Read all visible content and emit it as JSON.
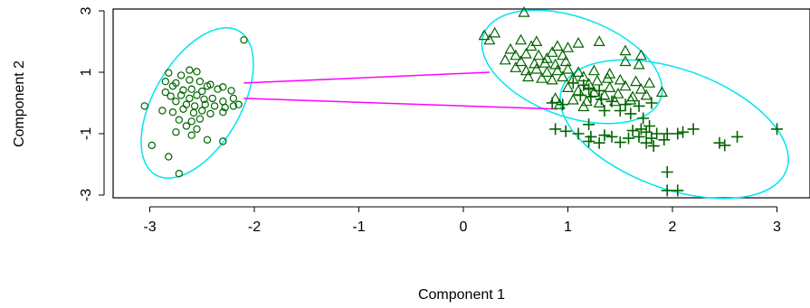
{
  "chart_data": {
    "type": "scatter",
    "xlabel": "Component 1",
    "ylabel": "Component 2",
    "xlim": [
      -3.35,
      3.05
    ],
    "ylim": [
      -3.2,
      3.05
    ],
    "xticks": [
      -3,
      -2,
      -1,
      0,
      1,
      2,
      3
    ],
    "yticks": [
      -3,
      -1,
      1,
      3
    ],
    "ytick_labels_rotated": true,
    "grid": false,
    "legend": "none",
    "colors": {
      "points": "#006400",
      "ellipse": "#00e5ee",
      "connector": "#ff00ff",
      "axes": "#000000"
    },
    "series": [
      {
        "marker": "circle",
        "points": [
          [
            -2.1,
            2.05
          ],
          [
            -2.82,
            0.98
          ],
          [
            -2.62,
            1.07
          ],
          [
            -2.55,
            1.02
          ],
          [
            -2.7,
            0.9
          ],
          [
            -2.85,
            0.7
          ],
          [
            -2.75,
            0.65
          ],
          [
            -2.62,
            0.75
          ],
          [
            -2.52,
            0.7
          ],
          [
            -2.42,
            0.6
          ],
          [
            -2.3,
            0.52
          ],
          [
            -2.78,
            0.55
          ],
          [
            -2.68,
            0.42
          ],
          [
            -2.6,
            0.45
          ],
          [
            -2.5,
            0.38
          ],
          [
            -2.45,
            0.55
          ],
          [
            -2.35,
            0.45
          ],
          [
            -2.22,
            0.4
          ],
          [
            -2.85,
            0.35
          ],
          [
            -2.8,
            0.22
          ],
          [
            -2.7,
            0.25
          ],
          [
            -2.62,
            0.15
          ],
          [
            -2.55,
            0.25
          ],
          [
            -2.48,
            0.12
          ],
          [
            -2.4,
            0.15
          ],
          [
            -2.3,
            0.05
          ],
          [
            -2.2,
            0.15
          ],
          [
            -2.15,
            -0.05
          ],
          [
            -2.75,
            0.05
          ],
          [
            -2.65,
            -0.05
          ],
          [
            -2.57,
            -0.1
          ],
          [
            -2.47,
            -0.05
          ],
          [
            -2.38,
            -0.1
          ],
          [
            -2.28,
            -0.15
          ],
          [
            -2.2,
            -0.1
          ],
          [
            -2.88,
            -0.25
          ],
          [
            -2.78,
            -0.3
          ],
          [
            -2.68,
            -0.2
          ],
          [
            -2.58,
            -0.32
          ],
          [
            -2.5,
            -0.25
          ],
          [
            -2.42,
            -0.35
          ],
          [
            -2.3,
            -0.3
          ],
          [
            -3.05,
            -0.1
          ],
          [
            -2.72,
            -0.55
          ],
          [
            -2.6,
            -0.6
          ],
          [
            -2.52,
            -0.52
          ],
          [
            -2.65,
            -0.75
          ],
          [
            -2.55,
            -0.85
          ],
          [
            -2.75,
            -0.95
          ],
          [
            -2.6,
            -1.05
          ],
          [
            -2.45,
            -1.2
          ],
          [
            -2.3,
            -1.25
          ],
          [
            -2.98,
            -1.38
          ],
          [
            -2.82,
            -1.75
          ],
          [
            -2.72,
            -2.3
          ]
        ]
      },
      {
        "marker": "triangle",
        "points": [
          [
            0.58,
            2.95
          ],
          [
            0.3,
            2.28
          ],
          [
            0.2,
            2.2
          ],
          [
            0.25,
            2.05
          ],
          [
            0.55,
            2.05
          ],
          [
            0.7,
            2.0
          ],
          [
            0.65,
            1.85
          ],
          [
            0.9,
            1.85
          ],
          [
            1.0,
            1.8
          ],
          [
            1.1,
            1.95
          ],
          [
            1.3,
            2.0
          ],
          [
            1.55,
            1.7
          ],
          [
            1.7,
            1.55
          ],
          [
            0.45,
            1.75
          ],
          [
            0.5,
            1.55
          ],
          [
            0.6,
            1.6
          ],
          [
            0.72,
            1.55
          ],
          [
            0.8,
            1.45
          ],
          [
            0.85,
            1.65
          ],
          [
            0.95,
            1.55
          ],
          [
            0.4,
            1.4
          ],
          [
            0.55,
            1.35
          ],
          [
            0.68,
            1.28
          ],
          [
            0.78,
            1.3
          ],
          [
            0.88,
            1.25
          ],
          [
            0.98,
            1.35
          ],
          [
            0.5,
            1.15
          ],
          [
            0.6,
            1.05
          ],
          [
            0.7,
            1.1
          ],
          [
            0.8,
            1.0
          ],
          [
            0.9,
            1.05
          ],
          [
            1.0,
            1.1
          ],
          [
            1.1,
            1.0
          ],
          [
            1.25,
            1.05
          ],
          [
            1.4,
            0.95
          ],
          [
            1.55,
            1.35
          ],
          [
            1.68,
            1.25
          ],
          [
            0.62,
            0.85
          ],
          [
            0.75,
            0.8
          ],
          [
            0.85,
            0.75
          ],
          [
            0.95,
            0.85
          ],
          [
            1.05,
            0.78
          ],
          [
            1.15,
            0.85
          ],
          [
            1.28,
            0.72
          ],
          [
            1.38,
            0.8
          ],
          [
            1.5,
            0.75
          ],
          [
            1.65,
            0.7
          ],
          [
            1.78,
            0.65
          ],
          [
            1.2,
            0.62
          ],
          [
            1.4,
            0.5
          ],
          [
            1.55,
            0.55
          ],
          [
            1.7,
            0.45
          ],
          [
            1.0,
            0.5
          ],
          [
            1.1,
            0.4
          ],
          [
            1.25,
            0.35
          ],
          [
            1.35,
            0.25
          ],
          [
            1.48,
            0.3
          ],
          [
            1.62,
            0.2
          ],
          [
            1.75,
            0.25
          ],
          [
            1.9,
            0.35
          ],
          [
            0.88,
            0.15
          ],
          [
            1.05,
            0.1
          ],
          [
            1.18,
            0.05
          ],
          [
            1.3,
            0.0
          ],
          [
            1.45,
            0.05
          ],
          [
            1.6,
            0.1
          ],
          [
            0.92,
            -0.05
          ],
          [
            1.15,
            -0.12
          ]
        ]
      },
      {
        "marker": "plus",
        "points": [
          [
            1.05,
            0.65
          ],
          [
            1.15,
            0.58
          ],
          [
            1.2,
            0.45
          ],
          [
            1.3,
            0.4
          ],
          [
            1.12,
            0.25
          ],
          [
            1.22,
            0.2
          ],
          [
            1.32,
            0.12
          ],
          [
            1.42,
            0.05
          ],
          [
            1.55,
            -0.05
          ],
          [
            1.68,
            -0.1
          ],
          [
            1.8,
            0.0
          ],
          [
            1.35,
            -0.25
          ],
          [
            1.5,
            -0.25
          ],
          [
            1.6,
            -0.35
          ],
          [
            1.72,
            -0.5
          ],
          [
            0.85,
            0.0
          ],
          [
            0.95,
            -0.05
          ],
          [
            1.78,
            -0.75
          ],
          [
            1.7,
            -0.85
          ],
          [
            1.62,
            -0.9
          ],
          [
            1.75,
            -0.95
          ],
          [
            1.85,
            -1.0
          ],
          [
            1.68,
            -1.1
          ],
          [
            1.8,
            -1.15
          ],
          [
            1.92,
            -1.2
          ],
          [
            1.75,
            -1.3
          ],
          [
            1.82,
            -1.4
          ],
          [
            1.95,
            -1.0
          ],
          [
            2.05,
            -1.0
          ],
          [
            2.1,
            -0.95
          ],
          [
            2.2,
            -0.85
          ],
          [
            1.2,
            -0.7
          ],
          [
            1.42,
            -1.1
          ],
          [
            1.5,
            -1.28
          ],
          [
            1.3,
            -1.3
          ],
          [
            1.22,
            -1.1
          ],
          [
            1.35,
            -1.05
          ],
          [
            1.58,
            -1.15
          ],
          [
            2.45,
            -1.3
          ],
          [
            2.5,
            -1.38
          ],
          [
            2.62,
            -1.1
          ],
          [
            1.95,
            -2.25
          ],
          [
            1.95,
            -2.85
          ],
          [
            2.05,
            -2.85
          ],
          [
            3.0,
            -0.85
          ],
          [
            1.2,
            -1.25
          ],
          [
            0.88,
            -0.85
          ],
          [
            0.98,
            -0.92
          ],
          [
            1.1,
            -1.0
          ]
        ]
      }
    ],
    "ellipses": [
      {
        "cx": -2.58,
        "cy": -0.1,
        "rx_left": -3.05,
        "rx_right": -2.05,
        "top": 2.2,
        "bottom": -2.4,
        "angle_deg": -60
      },
      {
        "cx": 1.0,
        "cy": 1.15,
        "left": 0.15,
        "right": 1.92,
        "top": 2.95,
        "bottom": -0.45,
        "angle_deg": 20
      },
      {
        "cx": 1.82,
        "cy": -0.95,
        "left": 0.85,
        "right": 3.05,
        "top": 1.5,
        "bottom": -3.15,
        "angle_deg": -25
      }
    ],
    "connectors": [
      {
        "from": [
          -2.1,
          0.65
        ],
        "to": [
          0.25,
          1.0
        ]
      },
      {
        "from": [
          -2.1,
          0.15
        ],
        "to": [
          0.9,
          -0.2
        ]
      }
    ]
  }
}
